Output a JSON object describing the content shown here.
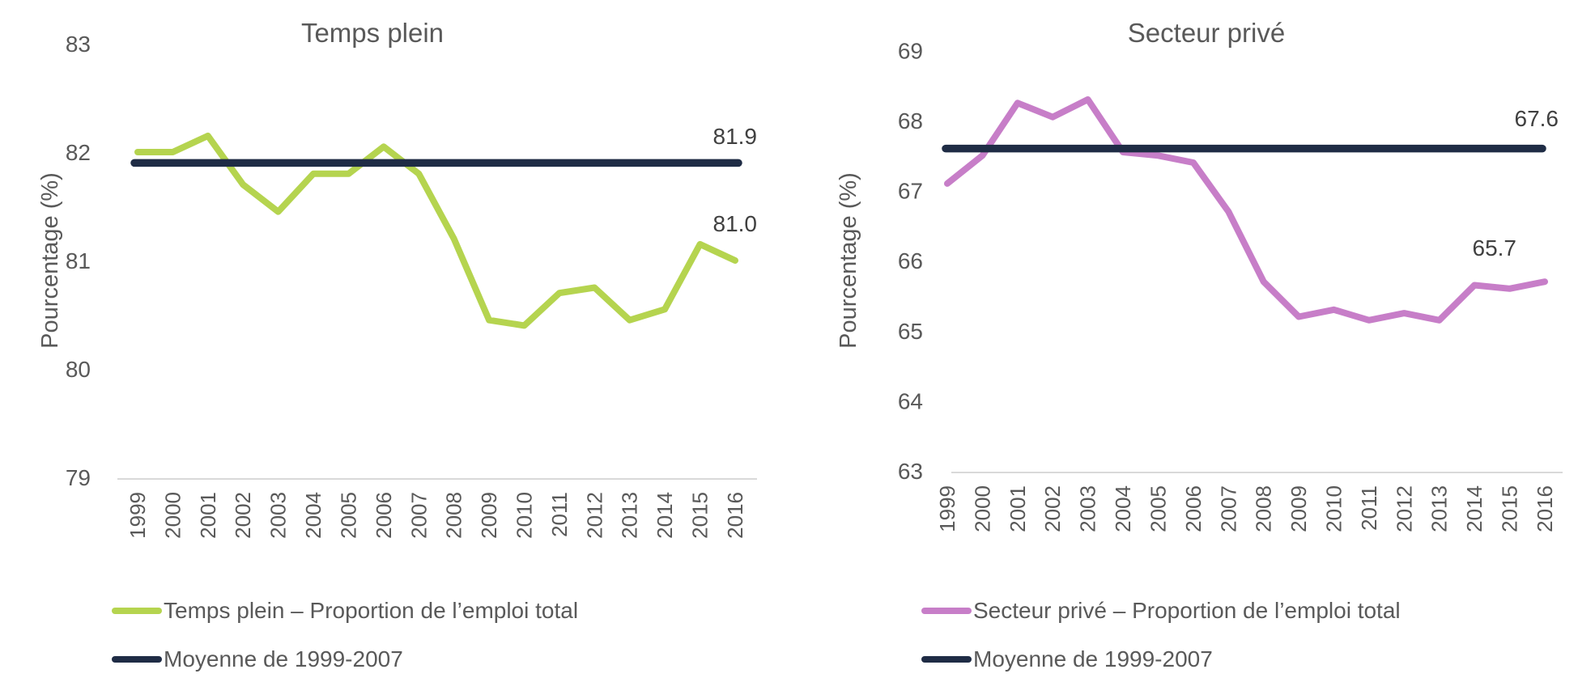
{
  "style": {
    "background": "#ffffff",
    "text_gray": "#595959",
    "value_label_color": "#404040",
    "axis_line_color": "#d9d9d9"
  },
  "chart_data": [
    {
      "type": "line",
      "title": "Temps plein",
      "ylabel": "Pourcentage (%)",
      "x": [
        "1999",
        "2000",
        "2001",
        "2002",
        "2003",
        "2004",
        "2005",
        "2006",
        "2007",
        "2008",
        "2009",
        "2010",
        "2011",
        "2012",
        "2013",
        "2014",
        "2015",
        "2016"
      ],
      "ylim": [
        79,
        83
      ],
      "yticks": [
        83,
        82,
        81,
        80,
        79
      ],
      "grid": false,
      "legend_position": "bottom-left",
      "series": [
        {
          "name": "Temps plein – Proportion de l’emploi total",
          "color": "#b5d44f",
          "values": [
            82.0,
            82.0,
            82.15,
            81.7,
            81.45,
            81.8,
            81.8,
            82.05,
            81.8,
            81.2,
            80.45,
            80.4,
            80.7,
            80.75,
            80.45,
            80.55,
            81.15,
            81.0
          ]
        },
        {
          "name": "Moyenne de 1999-2007",
          "color": "#1f2c45",
          "type": "constant",
          "value": 81.9
        }
      ],
      "end_labels": {
        "mean": "81.9",
        "final": "81.0"
      }
    },
    {
      "type": "line",
      "title": "Secteur privé",
      "ylabel": "Pourcentage (%)",
      "x": [
        "1999",
        "2000",
        "2001",
        "2002",
        "2003",
        "2004",
        "2005",
        "2006",
        "2007",
        "2008",
        "2009",
        "2010",
        "2011",
        "2012",
        "2013",
        "2014",
        "2015",
        "2016"
      ],
      "ylim": [
        63,
        69
      ],
      "yticks": [
        69,
        68,
        67,
        66,
        65,
        64,
        63
      ],
      "grid": false,
      "legend_position": "bottom-left",
      "series": [
        {
          "name": "Secteur privé – Proportion de l’emploi total",
          "color": "#c77ec8",
          "values": [
            67.1,
            67.5,
            68.25,
            68.05,
            68.3,
            67.55,
            67.5,
            67.4,
            66.7,
            65.7,
            65.2,
            65.3,
            65.15,
            65.25,
            65.15,
            65.65,
            65.6,
            65.7
          ]
        },
        {
          "name": "Moyenne de 1999-2007",
          "color": "#1f2c45",
          "type": "constant",
          "value": 67.6
        }
      ],
      "end_labels": {
        "mean": "67.6",
        "final": "65.7"
      }
    }
  ]
}
